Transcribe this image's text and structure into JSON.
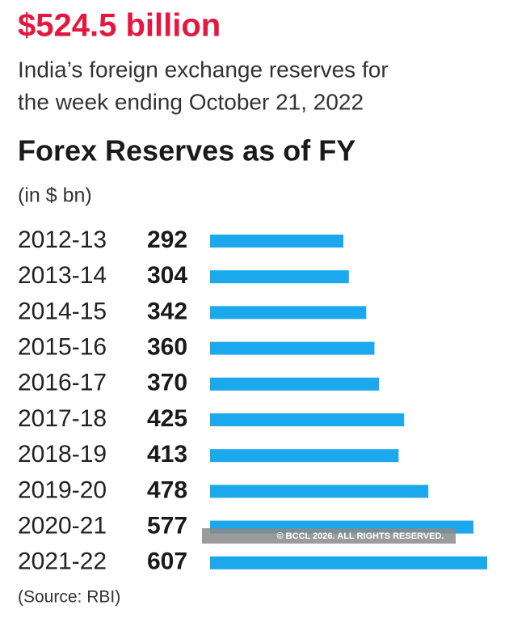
{
  "headline": "$524.5 billion",
  "subtitle": [
    "India’s foreign exchange reserves for",
    "the week ending October 21, 2022"
  ],
  "chart_data": {
    "type": "bar",
    "orientation": "horizontal",
    "title": "Forex Reserves as of FY",
    "unit": "(in $ bn)",
    "categories": [
      "2012-13",
      "2013-14",
      "2014-15",
      "2015-16",
      "2016-17",
      "2017-18",
      "2018-19",
      "2019-20",
      "2020-21",
      "2021-22"
    ],
    "values": [
      292,
      304,
      342,
      360,
      370,
      425,
      413,
      478,
      577,
      607
    ],
    "color": "#1ba8ec",
    "source": "(Source: RBI)"
  },
  "watermark": "© BCCL 2026. ALL RIGHTS RESERVED."
}
